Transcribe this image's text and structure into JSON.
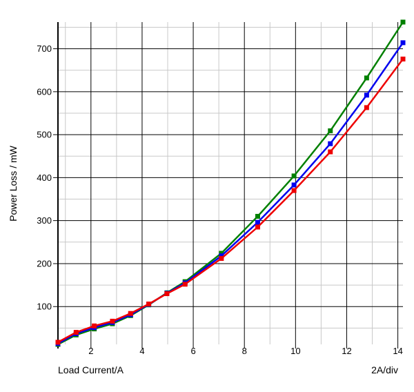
{
  "chart_data": {
    "type": "line",
    "title": "",
    "xlabel": "Load Current/A",
    "ylabel": "Power Loss / mW",
    "x_scale_note": "2A/div",
    "legend": "none",
    "grid": true,
    "marker": "square",
    "xlim": [
      0.71,
      14.2
    ],
    "ylim": [
      12,
      762
    ],
    "x_major_ticks": [
      2,
      4,
      6,
      8,
      10,
      12,
      14
    ],
    "x_minor_ticks": [
      1,
      3,
      5,
      7,
      9,
      11,
      13
    ],
    "y_major_ticks": [
      100,
      200,
      300,
      400,
      500,
      600,
      700
    ],
    "y_minor_ticks": [
      50,
      150,
      250,
      350,
      450,
      550,
      650,
      750
    ],
    "x": [
      0.71,
      1.42,
      2.13,
      2.84,
      3.55,
      4.26,
      4.97,
      5.68,
      7.1,
      8.52,
      9.94,
      11.36,
      12.78,
      14.2
    ],
    "series": [
      {
        "name": "green",
        "color": "#008000",
        "values": [
          12,
          34,
          48,
          60,
          79,
          104,
          132,
          158,
          224,
          310,
          404,
          509,
          632,
          762
        ]
      },
      {
        "name": "blue",
        "color": "#0000EE",
        "values": [
          14,
          37,
          51,
          63,
          81,
          105,
          131,
          155,
          218,
          296,
          383,
          479,
          592,
          714
        ]
      },
      {
        "name": "red",
        "color": "#EE0000",
        "values": [
          17,
          40,
          55,
          66,
          84,
          106,
          130,
          152,
          212,
          285,
          370,
          460,
          563,
          676
        ]
      }
    ],
    "colors": {
      "grid_major": "#000000",
      "grid_minor": "#C8C8C8",
      "axis": "#000000",
      "text": "#000000",
      "background": "#FFFFFF"
    }
  }
}
